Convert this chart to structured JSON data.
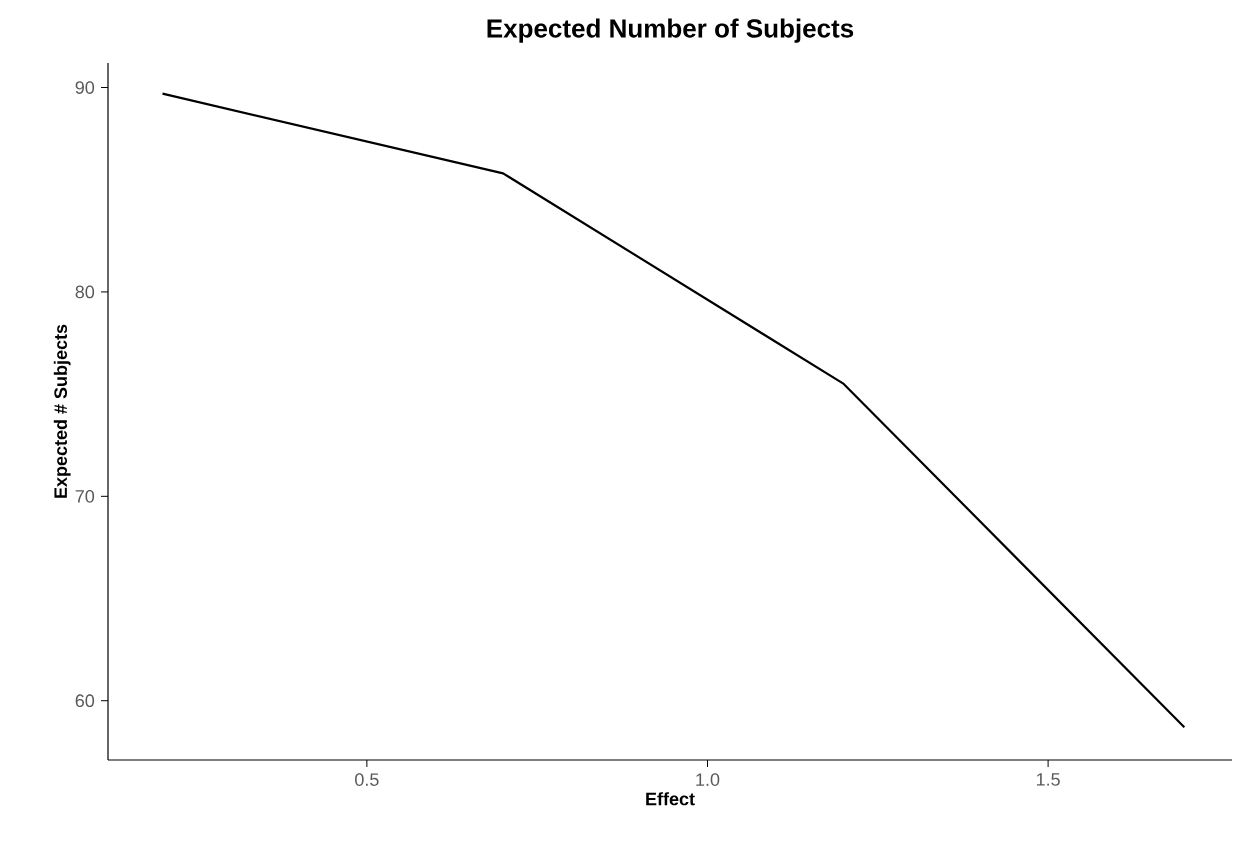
{
  "chart_data": {
    "type": "line",
    "title": "Expected Number of Subjects",
    "xlabel": "Effect",
    "ylabel": "Expected # Subjects",
    "x": [
      0.2,
      0.7,
      1.2,
      1.7
    ],
    "series": [
      {
        "color": "#000000",
        "values": [
          89.7,
          85.8,
          75.5,
          58.7
        ]
      }
    ],
    "xlim": [
      0.12,
      1.77
    ],
    "ylim": [
      57.1,
      91.2
    ],
    "xticks": [
      {
        "value": 0.5,
        "label": "0.5"
      },
      {
        "value": 1.0,
        "label": "1.0"
      },
      {
        "value": 1.5,
        "label": "1.5"
      }
    ],
    "yticks": [
      60,
      70,
      80,
      90
    ],
    "marker": "none",
    "line_style": "solid"
  }
}
